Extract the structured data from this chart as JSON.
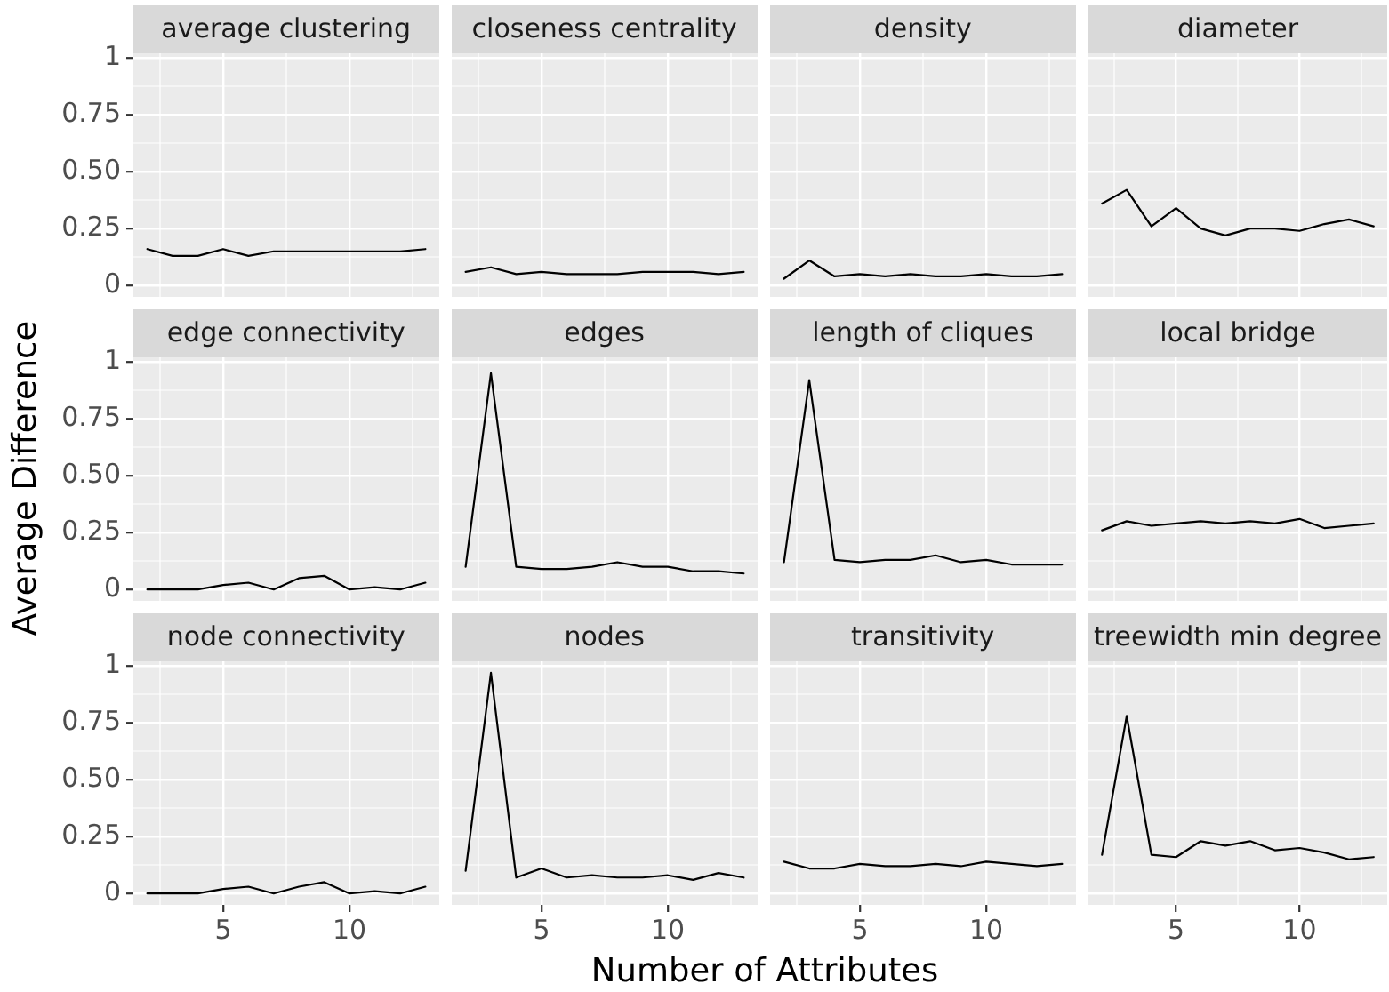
{
  "chart_data": [
    {
      "type": "line",
      "title": "average clustering",
      "x": [
        2,
        3,
        4,
        5,
        6,
        7,
        8,
        9,
        10,
        11,
        12,
        13
      ],
      "values": [
        0.16,
        0.13,
        0.13,
        0.16,
        0.13,
        0.15,
        0.15,
        0.15,
        0.15,
        0.15,
        0.15,
        0.16
      ],
      "color": "#000000",
      "xlim": [
        1.45,
        13.55
      ],
      "ylim": [
        -0.05,
        1.02
      ],
      "yticks": [
        0,
        {
          "value": 0.125,
          "label": null
        },
        0.25,
        {
          "value": 0.375,
          "label": null
        },
        {
          "value": 0.5,
          "label": "0.50"
        },
        {
          "value": 0.625,
          "label": null
        },
        0.75,
        {
          "value": 0.875,
          "label": null
        },
        1
      ],
      "grid": true,
      "tick_labels": "y"
    },
    {
      "type": "line",
      "title": "closeness centrality",
      "x": [
        2,
        3,
        4,
        5,
        6,
        7,
        8,
        9,
        10,
        11,
        12,
        13
      ],
      "values": [
        0.06,
        0.08,
        0.05,
        0.06,
        0.05,
        0.05,
        0.05,
        0.06,
        0.06,
        0.06,
        0.05,
        0.06
      ],
      "color": "#000000",
      "xlim": [
        1.45,
        13.55
      ],
      "ylim": [
        -0.05,
        1.02
      ],
      "grid": true,
      "tick_labels": false
    },
    {
      "type": "line",
      "title": "density",
      "x": [
        2,
        3,
        4,
        5,
        6,
        7,
        8,
        9,
        10,
        11,
        12,
        13
      ],
      "values": [
        0.03,
        0.11,
        0.04,
        0.05,
        0.04,
        0.05,
        0.04,
        0.04,
        0.05,
        0.04,
        0.04,
        0.05
      ],
      "color": "#000000",
      "xlim": [
        1.45,
        13.55
      ],
      "ylim": [
        -0.05,
        1.02
      ],
      "grid": true,
      "tick_labels": false
    },
    {
      "type": "line",
      "title": "diameter",
      "x": [
        2,
        3,
        4,
        5,
        6,
        7,
        8,
        9,
        10,
        11,
        12,
        13
      ],
      "values": [
        0.36,
        0.42,
        0.26,
        0.34,
        0.25,
        0.22,
        0.25,
        0.25,
        0.24,
        0.27,
        0.29,
        0.26
      ],
      "color": "#000000",
      "xlim": [
        1.45,
        13.55
      ],
      "ylim": [
        -0.05,
        1.02
      ],
      "grid": true,
      "tick_labels": false
    },
    {
      "type": "line",
      "title": "edge connectivity",
      "ylabel": "Average Difference",
      "x": [
        2,
        3,
        4,
        5,
        6,
        7,
        8,
        9,
        10,
        11,
        12,
        13
      ],
      "values": [
        0,
        0,
        0,
        0.02,
        0.03,
        0,
        0.05,
        0.06,
        0,
        0.01,
        0,
        0.03
      ],
      "color": "#000000",
      "xlim": [
        1.45,
        13.55
      ],
      "ylim": [
        -0.05,
        1.02
      ],
      "yticks": [
        0,
        {
          "value": 0.125,
          "label": null
        },
        0.25,
        {
          "value": 0.375,
          "label": null
        },
        {
          "value": 0.5,
          "label": "0.50"
        },
        {
          "value": 0.625,
          "label": null
        },
        0.75,
        {
          "value": 0.875,
          "label": null
        },
        1
      ],
      "grid": true,
      "tick_labels": "y"
    },
    {
      "type": "line",
      "title": "edges",
      "x": [
        2,
        3,
        4,
        5,
        6,
        7,
        8,
        9,
        10,
        11,
        12,
        13
      ],
      "values": [
        0.1,
        0.95,
        0.1,
        0.09,
        0.09,
        0.1,
        0.12,
        0.1,
        0.1,
        0.08,
        0.08,
        0.07
      ],
      "color": "#000000",
      "xlim": [
        1.45,
        13.55
      ],
      "ylim": [
        -0.05,
        1.02
      ],
      "grid": true,
      "tick_labels": false
    },
    {
      "type": "line",
      "title": "length of cliques",
      "x": [
        2,
        3,
        4,
        5,
        6,
        7,
        8,
        9,
        10,
        11,
        12,
        13
      ],
      "values": [
        0.12,
        0.92,
        0.13,
        0.12,
        0.13,
        0.13,
        0.15,
        0.12,
        0.13,
        0.11,
        0.11,
        0.11
      ],
      "color": "#000000",
      "xlim": [
        1.45,
        13.55
      ],
      "ylim": [
        -0.05,
        1.02
      ],
      "grid": true,
      "tick_labels": false
    },
    {
      "type": "line",
      "title": "local bridge",
      "x": [
        2,
        3,
        4,
        5,
        6,
        7,
        8,
        9,
        10,
        11,
        12,
        13
      ],
      "values": [
        0.26,
        0.3,
        0.28,
        0.29,
        0.3,
        0.29,
        0.3,
        0.29,
        0.31,
        0.27,
        0.28,
        0.29
      ],
      "color": "#000000",
      "xlim": [
        1.45,
        13.55
      ],
      "ylim": [
        -0.05,
        1.02
      ],
      "grid": true,
      "tick_labels": false
    },
    {
      "type": "line",
      "title": "node connectivity",
      "x": [
        2,
        3,
        4,
        5,
        6,
        7,
        8,
        9,
        10,
        11,
        12,
        13
      ],
      "values": [
        0,
        0,
        0,
        0.02,
        0.03,
        0,
        0.03,
        0.05,
        0,
        0.01,
        0,
        0.03
      ],
      "color": "#000000",
      "xlim": [
        1.45,
        13.55
      ],
      "ylim": [
        -0.05,
        1.02
      ],
      "xticks": [
        {
          "value": 2.5,
          "label": null
        },
        {
          "value": 5,
          "label": "5"
        },
        {
          "value": 7.5,
          "label": null
        },
        {
          "value": 10,
          "label": "10"
        },
        {
          "value": 12.5,
          "label": null
        }
      ],
      "yticks": [
        0,
        {
          "value": 0.125,
          "label": null
        },
        0.25,
        {
          "value": 0.375,
          "label": null
        },
        {
          "value": 0.5,
          "label": "0.50"
        },
        {
          "value": 0.625,
          "label": null
        },
        0.75,
        {
          "value": 0.875,
          "label": null
        },
        1
      ],
      "grid": true
    },
    {
      "type": "line",
      "title": "nodes",
      "xlabel": "Number of Attributes",
      "x": [
        2,
        3,
        4,
        5,
        6,
        7,
        8,
        9,
        10,
        11,
        12,
        13
      ],
      "values": [
        0.1,
        0.97,
        0.07,
        0.11,
        0.07,
        0.08,
        0.07,
        0.07,
        0.08,
        0.06,
        0.09,
        0.07
      ],
      "color": "#000000",
      "xlim": [
        1.45,
        13.55
      ],
      "ylim": [
        -0.05,
        1.02
      ],
      "xticks": [
        {
          "value": 2.5,
          "label": null
        },
        {
          "value": 5,
          "label": "5"
        },
        {
          "value": 7.5,
          "label": null
        },
        {
          "value": 10,
          "label": "10"
        },
        {
          "value": 12.5,
          "label": null
        }
      ],
      "grid": true,
      "tick_labels": "x"
    },
    {
      "type": "line",
      "title": "transitivity",
      "x": [
        2,
        3,
        4,
        5,
        6,
        7,
        8,
        9,
        10,
        11,
        12,
        13
      ],
      "values": [
        0.14,
        0.11,
        0.11,
        0.13,
        0.12,
        0.12,
        0.13,
        0.12,
        0.14,
        0.13,
        0.12,
        0.13
      ],
      "color": "#000000",
      "xlim": [
        1.45,
        13.55
      ],
      "ylim": [
        -0.05,
        1.02
      ],
      "xticks": [
        {
          "value": 2.5,
          "label": null
        },
        {
          "value": 5,
          "label": "5"
        },
        {
          "value": 7.5,
          "label": null
        },
        {
          "value": 10,
          "label": "10"
        },
        {
          "value": 12.5,
          "label": null
        }
      ],
      "grid": true,
      "tick_labels": "x"
    },
    {
      "type": "line",
      "title": "treewidth min degree",
      "x": [
        2,
        3,
        4,
        5,
        6,
        7,
        8,
        9,
        10,
        11,
        12,
        13
      ],
      "values": [
        0.17,
        0.78,
        0.17,
        0.16,
        0.23,
        0.21,
        0.23,
        0.19,
        0.2,
        0.18,
        0.15,
        0.16
      ],
      "color": "#000000",
      "xlim": [
        1.45,
        13.55
      ],
      "ylim": [
        -0.05,
        1.02
      ],
      "xticks": [
        {
          "value": 2.5,
          "label": null
        },
        {
          "value": 5,
          "label": "5"
        },
        {
          "value": 7.5,
          "label": null
        },
        {
          "value": 10,
          "label": "10"
        },
        {
          "value": 12.5,
          "label": null
        }
      ],
      "grid": true,
      "tick_labels": "x"
    }
  ]
}
